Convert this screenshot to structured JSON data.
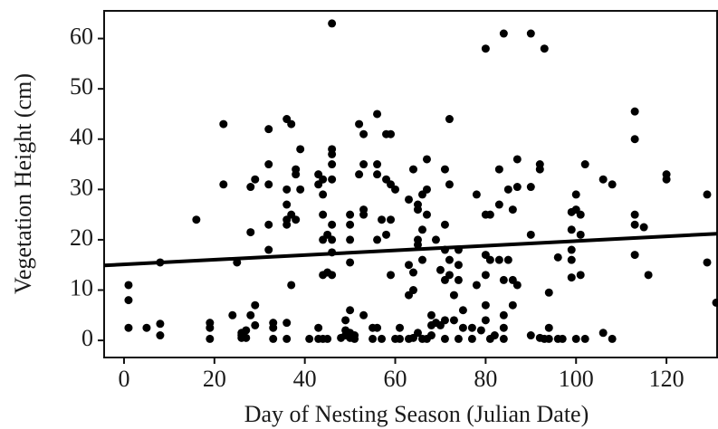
{
  "chart_data": {
    "type": "scatter",
    "xlabel": "Day of Nesting Season (Julian Date)",
    "ylabel": "Vegetation Height (cm)",
    "color": "#000000",
    "x": [
      1,
      1,
      1,
      5,
      8,
      8,
      8,
      16,
      19,
      19,
      19,
      22,
      22,
      24,
      25,
      26,
      26,
      26,
      27,
      27,
      28,
      28,
      28,
      29,
      29,
      29,
      32,
      32,
      32,
      32,
      32,
      33,
      33,
      33,
      36,
      36,
      36,
      36,
      36,
      36,
      36,
      37,
      37,
      37,
      38,
      38,
      38,
      39,
      39,
      41,
      43,
      43,
      43,
      43,
      44,
      44,
      44,
      44,
      44,
      44,
      45,
      45,
      45,
      46,
      46,
      46,
      46,
      46,
      46,
      46,
      46,
      46,
      48,
      49,
      49,
      49,
      50,
      50,
      50,
      50,
      50,
      50,
      50,
      51,
      51,
      52,
      52,
      53,
      53,
      53,
      53,
      53,
      55,
      55,
      56,
      56,
      56,
      56,
      56,
      57,
      57,
      58,
      58,
      58,
      59,
      59,
      59,
      59,
      60,
      60,
      61,
      61,
      63,
      63,
      63,
      63,
      64,
      64,
      64,
      64,
      65,
      65,
      65,
      65,
      65,
      66,
      66,
      66,
      66,
      67,
      67,
      67,
      67,
      68,
      68,
      68,
      69,
      69,
      70,
      70,
      71,
      71,
      71,
      71,
      71,
      71,
      72,
      72,
      72,
      72,
      73,
      73,
      74,
      74,
      74,
      74,
      75,
      75,
      77,
      77,
      78,
      78,
      79,
      80,
      80,
      80,
      80,
      80,
      80,
      81,
      81,
      81,
      82,
      83,
      83,
      83,
      84,
      84,
      84,
      84,
      84,
      85,
      85,
      86,
      86,
      86,
      87,
      87,
      87,
      90,
      90,
      90,
      90,
      92,
      92,
      92,
      93,
      93,
      94,
      94,
      94,
      96,
      96,
      97,
      99,
      99,
      99,
      99,
      99,
      100,
      100,
      100,
      101,
      101,
      101,
      102,
      102,
      106,
      106,
      108,
      108,
      113,
      113,
      113,
      113,
      113,
      115,
      116,
      120,
      120,
      129,
      129,
      131
    ],
    "y": [
      11,
      8,
      2.5,
      2.5,
      3.3,
      1,
      15.5,
      24,
      3.5,
      2.5,
      0.3,
      43,
      31,
      5,
      15.5,
      1.5,
      0.5,
      1,
      0.5,
      2,
      21.5,
      30.5,
      5,
      32,
      3,
      7,
      42,
      35,
      31,
      23,
      18,
      3.5,
      0.3,
      2.5,
      44,
      30,
      27,
      24,
      23,
      3.5,
      0.3,
      43,
      11,
      25,
      34,
      33,
      24,
      38,
      30,
      0.3,
      31,
      33,
      2.5,
      0.3,
      32,
      29,
      25,
      20,
      13,
      0.3,
      21,
      13.5,
      0.3,
      63,
      38,
      37,
      35,
      32,
      23,
      20,
      17.5,
      13,
      0.5,
      4,
      2,
      1,
      6,
      25,
      23,
      20,
      15.5,
      0.5,
      1.5,
      0.3,
      1,
      43,
      33,
      41,
      35,
      26,
      25,
      5,
      2.5,
      0.3,
      45,
      35,
      33,
      20,
      2.5,
      24,
      0.3,
      41,
      32,
      21,
      41,
      31,
      24,
      13,
      30,
      0.3,
      2.5,
      0.3,
      0.3,
      28,
      15,
      9,
      34,
      10,
      13.5,
      0.5,
      26,
      20,
      19,
      27,
      1.5,
      29,
      22,
      16,
      0.3,
      36,
      30,
      25,
      0.3,
      5,
      3,
      1,
      20,
      3.5,
      14,
      3,
      34,
      18,
      23,
      12,
      4,
      0.3,
      44,
      31,
      13,
      16,
      9,
      4,
      18,
      15,
      12,
      0.3,
      2.5,
      6,
      2.5,
      0.3,
      29,
      11,
      2,
      58,
      25,
      17,
      13,
      7,
      4,
      25,
      16,
      0.3,
      1,
      34,
      27,
      16,
      61,
      12,
      5,
      2.5,
      0.3,
      30,
      16,
      26,
      12,
      7,
      36,
      30.5,
      11,
      61,
      30.5,
      21,
      1,
      35,
      34,
      0.5,
      58,
      0.3,
      9.5,
      2.5,
      0.3,
      0.3,
      16.5,
      0.3,
      22,
      25.5,
      18,
      16,
      12.5,
      29,
      26,
      0.3,
      21,
      25,
      13,
      35,
      0.3,
      32,
      1.5,
      31,
      0.3,
      45.5,
      40,
      25,
      23,
      17,
      22.5,
      13,
      33,
      32,
      29,
      15.5,
      7.5
    ],
    "trendline": {
      "x": [
        -4.4,
        131.2
      ],
      "y": [
        14.9,
        21.2
      ]
    },
    "xlim": [
      -4.4,
      131.2
    ],
    "ylim": [
      -3.4,
      65.5
    ],
    "xticks": [
      0,
      20,
      40,
      60,
      80,
      100,
      120
    ],
    "yticks": [
      0,
      10,
      20,
      30,
      40,
      50,
      60
    ]
  }
}
